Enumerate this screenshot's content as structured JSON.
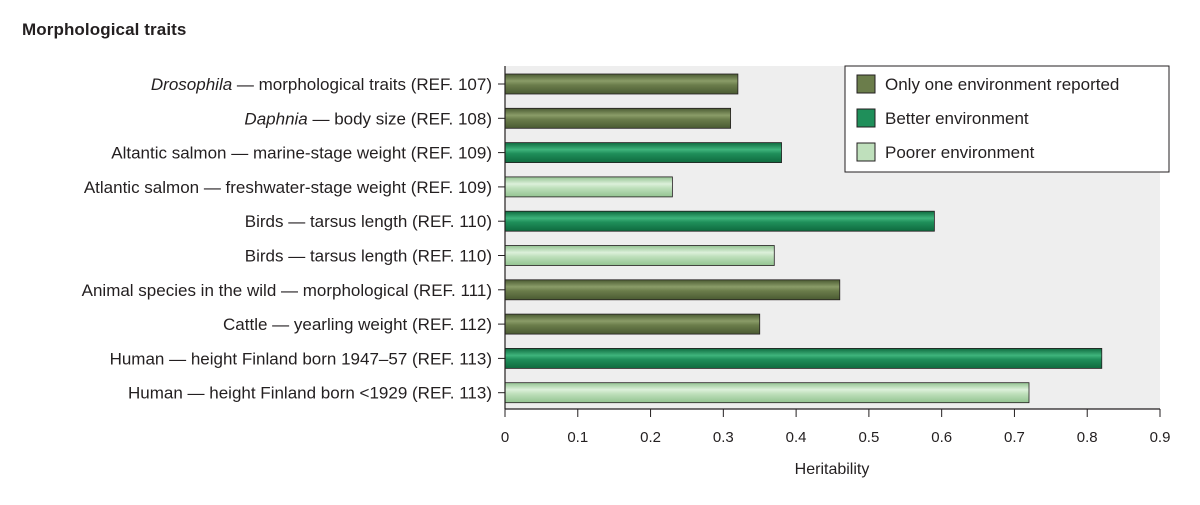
{
  "chart_data": {
    "type": "bar",
    "orientation": "horizontal",
    "title": "Morphological traits",
    "xlabel": "Heritability",
    "ylabel": "",
    "xlim": [
      0,
      0.9
    ],
    "xticks": [
      "0",
      "0.1",
      "0.2",
      "0.3",
      "0.4",
      "0.5",
      "0.6",
      "0.7",
      "0.8",
      "0.9"
    ],
    "grid": false,
    "legend_position": "top-right",
    "series_styles": [
      {
        "name": "Only one environment reported",
        "color": "#6b7d4b",
        "dark": "#4a5a32",
        "light": "#8a9c68"
      },
      {
        "name": "Better environment",
        "color": "#1f8f5a",
        "dark": "#0e6a3e",
        "light": "#3fb47c"
      },
      {
        "name": "Poorer environment",
        "color": "#bfe0bc",
        "dark": "#93c391",
        "light": "#dcf0da"
      }
    ],
    "bars": [
      {
        "italic": "Drosophila",
        "label": " — morphological traits (REF. 107)",
        "value": 0.32,
        "series": "Only one environment reported"
      },
      {
        "italic": "Daphnia",
        "label": " — body size (REF. 108)",
        "value": 0.31,
        "series": "Only one environment reported"
      },
      {
        "italic": "",
        "label": "Altantic salmon — marine-stage weight (REF. 109)",
        "value": 0.38,
        "series": "Better environment"
      },
      {
        "italic": "",
        "label": "Atlantic salmon — freshwater-stage weight (REF. 109)",
        "value": 0.23,
        "series": "Poorer environment"
      },
      {
        "italic": "",
        "label": "Birds — tarsus length (REF. 110)",
        "value": 0.59,
        "series": "Better environment"
      },
      {
        "italic": "",
        "label": "Birds — tarsus length (REF. 110)",
        "value": 0.37,
        "series": "Poorer environment"
      },
      {
        "italic": "",
        "label": "Animal species in the wild — morphological (REF. 111)",
        "value": 0.46,
        "series": "Only one environment reported"
      },
      {
        "italic": "",
        "label": "Cattle — yearling weight (REF. 112)",
        "value": 0.35,
        "series": "Only one environment reported"
      },
      {
        "italic": "",
        "label": "Human — height Finland born 1947–57 (REF. 113)",
        "value": 0.82,
        "series": "Better environment"
      },
      {
        "italic": "",
        "label": "Human — height Finland born <1929 (REF. 113)",
        "value": 0.72,
        "series": "Poorer environment"
      }
    ],
    "legend": [
      "Only one environment reported",
      "Better environment",
      "Poorer environment"
    ],
    "colors": {
      "plot_background": "#eeeeee",
      "axis": "#231f20"
    }
  }
}
